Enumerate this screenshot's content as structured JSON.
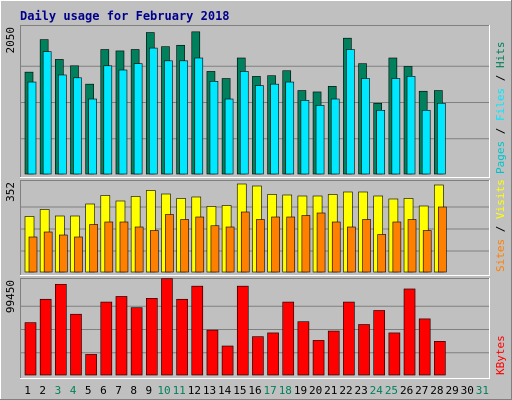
{
  "title": "Daily usage for February 2018",
  "colors": {
    "background": "#c0c0c0",
    "hits": "#00805c",
    "files": "#00e8ff",
    "pages": "#00c4cc",
    "visits": "#ffff00",
    "sites": "#ff8000",
    "kbytes": "#ff0000",
    "weekday_label": "#000000",
    "weekend_label": "#00805c"
  },
  "chart_data": [
    {
      "type": "bar",
      "panel": "hits-files-pages",
      "ymax_label": "2050",
      "ylim": [
        0,
        2050
      ],
      "categories": [
        "1",
        "2",
        "3",
        "4",
        "5",
        "6",
        "7",
        "8",
        "9",
        "10",
        "11",
        "12",
        "13",
        "14",
        "15",
        "16",
        "17",
        "18",
        "19",
        "20",
        "21",
        "22",
        "23",
        "24",
        "25",
        "26",
        "27",
        "28",
        "29",
        "30",
        "31"
      ],
      "weekend_days": [
        "3",
        "4",
        "10",
        "11",
        "17",
        "18",
        "24",
        "25",
        "31"
      ],
      "legend": [
        "Pages",
        "Files",
        "Hits"
      ],
      "series": [
        {
          "name": "Hits",
          "values": [
            1440,
            1900,
            1620,
            1530,
            1270,
            1760,
            1740,
            1760,
            2000,
            1800,
            1820,
            2010,
            1450,
            1350,
            1640,
            1380,
            1390,
            1460,
            1180,
            1160,
            1240,
            1920,
            1560,
            1000,
            1640,
            1520,
            1170,
            1180,
            0,
            0,
            0
          ]
        },
        {
          "name": "Files",
          "values": [
            1300,
            1730,
            1400,
            1360,
            1060,
            1530,
            1470,
            1560,
            1780,
            1600,
            1600,
            1640,
            1310,
            1060,
            1450,
            1250,
            1270,
            1300,
            1040,
            970,
            1060,
            1760,
            1350,
            900,
            1350,
            1380,
            900,
            1000,
            0,
            0,
            0
          ]
        },
        {
          "name": "Pages",
          "values": [
            0,
            0,
            0,
            0,
            0,
            0,
            0,
            0,
            0,
            0,
            0,
            0,
            0,
            0,
            0,
            0,
            0,
            0,
            0,
            0,
            0,
            0,
            0,
            0,
            0,
            0,
            0,
            0,
            0,
            0,
            0
          ]
        }
      ]
    },
    {
      "type": "bar",
      "panel": "visits-sites",
      "ymax_label": "352",
      "ylim": [
        0,
        352
      ],
      "categories": [
        "1",
        "2",
        "3",
        "4",
        "5",
        "6",
        "7",
        "8",
        "9",
        "10",
        "11",
        "12",
        "13",
        "14",
        "15",
        "16",
        "17",
        "18",
        "19",
        "20",
        "21",
        "22",
        "23",
        "24",
        "25",
        "26",
        "27",
        "28",
        "29",
        "30",
        "31"
      ],
      "legend": [
        "Sites",
        "Visits"
      ],
      "series": [
        {
          "name": "Visits",
          "values": [
            222,
            250,
            224,
            224,
            272,
            306,
            284,
            302,
            326,
            312,
            294,
            300,
            262,
            266,
            352,
            344,
            310,
            308,
            304,
            304,
            310,
            320,
            320,
            304,
            292,
            294,
            264,
            348,
            0,
            0,
            0
          ]
        },
        {
          "name": "Sites",
          "values": [
            140,
            160,
            148,
            140,
            190,
            200,
            200,
            180,
            166,
            230,
            210,
            220,
            185,
            180,
            240,
            210,
            220,
            220,
            226,
            236,
            200,
            180,
            210,
            150,
            200,
            210,
            166,
            260,
            0,
            0,
            0
          ]
        }
      ]
    },
    {
      "type": "bar",
      "panel": "kbytes",
      "ymax_label": "99450",
      "ylim": [
        0,
        99450
      ],
      "categories": [
        "1",
        "2",
        "3",
        "4",
        "5",
        "6",
        "7",
        "8",
        "9",
        "10",
        "11",
        "12",
        "13",
        "14",
        "15",
        "16",
        "17",
        "18",
        "19",
        "20",
        "21",
        "22",
        "23",
        "24",
        "25",
        "26",
        "27",
        "28",
        "29",
        "30",
        "31"
      ],
      "legend": [
        "KBytes"
      ],
      "series": [
        {
          "name": "KBytes",
          "values": [
            56000,
            81000,
            97000,
            65000,
            22000,
            78000,
            84000,
            72000,
            82000,
            103000,
            81000,
            95000,
            48000,
            31000,
            95000,
            41000,
            45000,
            78000,
            57000,
            37000,
            47000,
            78000,
            54000,
            69000,
            45000,
            92000,
            60000,
            36000,
            0,
            0,
            0
          ]
        }
      ]
    }
  ]
}
